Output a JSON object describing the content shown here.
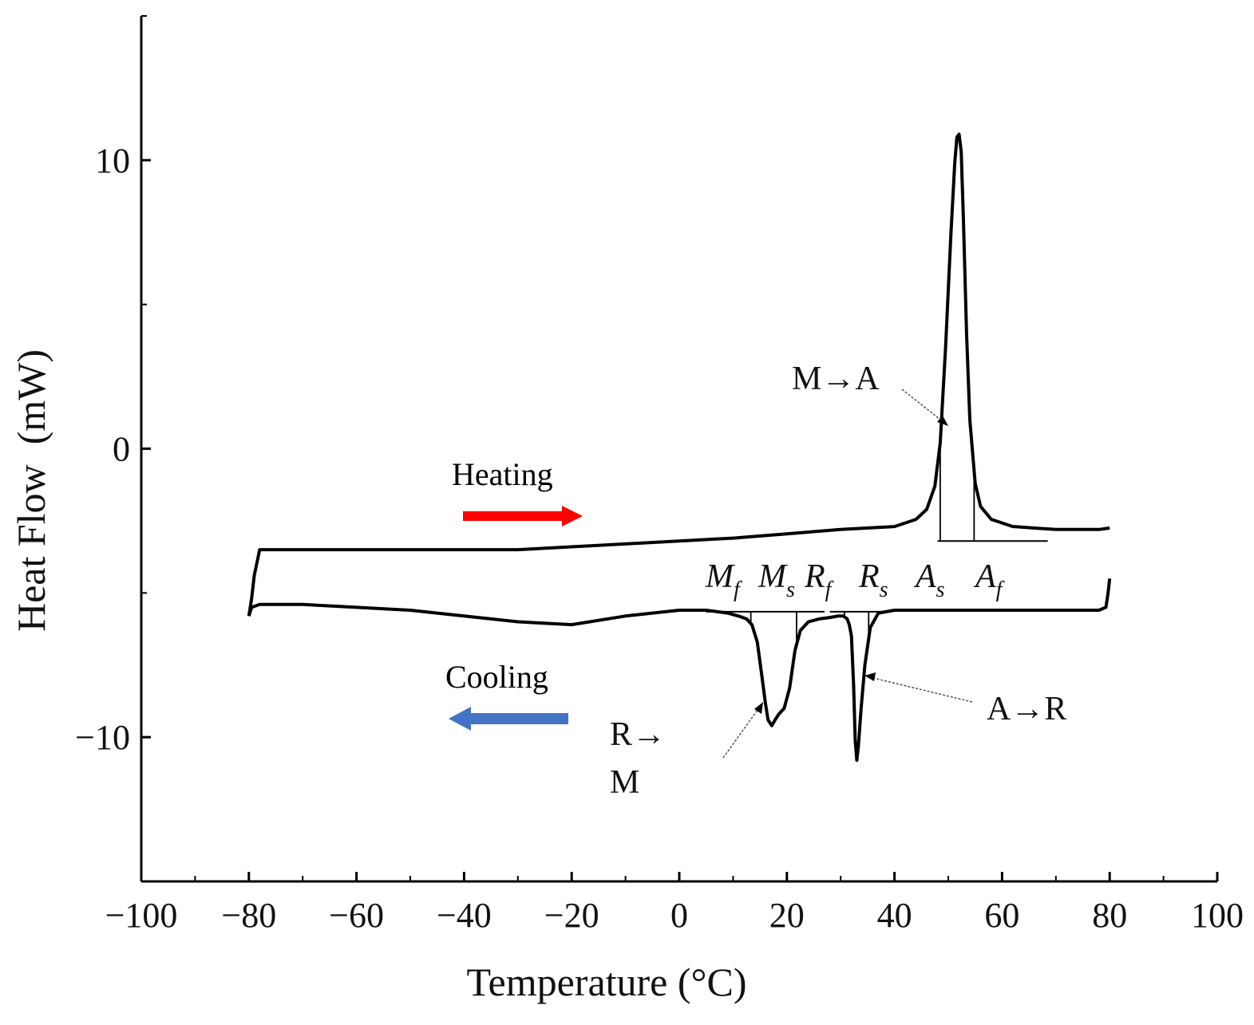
{
  "chart_data": {
    "type": "line",
    "title": "",
    "xlabel": "Temperature (°C)",
    "ylabel": "Heat Flow  (mW)",
    "xlim": [
      -100,
      100
    ],
    "ylim": [
      -15,
      15
    ],
    "x_ticks": [
      -100,
      -80,
      -60,
      -40,
      -20,
      0,
      20,
      40,
      60,
      80,
      100
    ],
    "x_tick_labels": [
      "−100",
      "−80",
      "−60",
      "−40",
      "−20",
      "0",
      "20",
      "40",
      "60",
      "80",
      "100"
    ],
    "y_ticks": [
      10,
      0,
      -10
    ],
    "y_tick_labels": [
      "10",
      "0",
      "−10"
    ],
    "grid": false,
    "series": [
      {
        "role": "heating",
        "x": [
          -80,
          -79.5,
          -79,
          -78,
          -70,
          -60,
          -50,
          -40,
          -30,
          -20,
          -10,
          0,
          10,
          20,
          30,
          40,
          44,
          46,
          47.5,
          48.5,
          49.5,
          50.5,
          51.2,
          51.6,
          52,
          52.4,
          52.8,
          53.4,
          54,
          55,
          56,
          58,
          62,
          66,
          70,
          74,
          78,
          80
        ],
        "y": [
          -5.8,
          -5.2,
          -4.4,
          -3.5,
          -3.5,
          -3.5,
          -3.5,
          -3.5,
          -3.5,
          -3.4,
          -3.3,
          -3.2,
          -3.1,
          -2.95,
          -2.8,
          -2.7,
          -2.45,
          -2.1,
          -1.3,
          0.2,
          3.5,
          7.5,
          9.9,
          10.8,
          10.9,
          10.3,
          8.0,
          4.0,
          1.0,
          -1.2,
          -2.0,
          -2.45,
          -2.7,
          -2.75,
          -2.8,
          -2.8,
          -2.8,
          -2.75
        ]
      },
      {
        "role": "cooling",
        "x": [
          80,
          79.7,
          79.3,
          78,
          70,
          60,
          50,
          45,
          40,
          37,
          35.5,
          34.5,
          33.8,
          33.3,
          33,
          32.7,
          32.4,
          32,
          31.6,
          31.2,
          30.5,
          29.5,
          28,
          26,
          24,
          22.5,
          21.5,
          20.5,
          19.5,
          18.5,
          17.8,
          17.2,
          16.5,
          16,
          15.3,
          14.5,
          13.5,
          12.5,
          11,
          9,
          5,
          0,
          -10,
          -20,
          -30,
          -40,
          -50,
          -60,
          -70,
          -78,
          -79.5,
          -80
        ],
        "y": [
          -4.5,
          -5.0,
          -5.5,
          -5.6,
          -5.6,
          -5.6,
          -5.6,
          -5.6,
          -5.6,
          -5.7,
          -6.2,
          -7.5,
          -9.0,
          -10.3,
          -10.8,
          -10.1,
          -8.2,
          -6.5,
          -6.1,
          -5.9,
          -5.8,
          -5.8,
          -5.85,
          -5.9,
          -6.0,
          -6.3,
          -7.0,
          -8.3,
          -9.0,
          -9.2,
          -9.4,
          -9.6,
          -9.4,
          -8.8,
          -7.8,
          -6.7,
          -6.1,
          -5.9,
          -5.8,
          -5.7,
          -5.6,
          -5.6,
          -5.8,
          -6.1,
          -6.0,
          -5.8,
          -5.6,
          -5.5,
          -5.4,
          -5.4,
          -5.5,
          -5.8
        ]
      }
    ],
    "baselines": [
      {
        "x": [
          48,
          68.5
        ],
        "y": [
          -3.2,
          -3.2
        ]
      },
      {
        "x": [
          5,
          27
        ],
        "y": [
          -5.65,
          -5.65
        ]
      },
      {
        "x": [
          28,
          39
        ],
        "y": [
          -5.65,
          -5.65
        ]
      }
    ],
    "markers": [
      {
        "name": "Mf",
        "x": 13.3,
        "y_top": -5.75
      },
      {
        "name": "Ms",
        "x": 21.8,
        "y_top": -5.75
      },
      {
        "name": "Rf",
        "x": 30.7,
        "y_top": -5.75
      },
      {
        "name": "Rs",
        "x": 35.2,
        "y_top": -5.75
      },
      {
        "name": "As",
        "x": 48.5,
        "y_top": -2.3
      },
      {
        "name": "Af",
        "x": 54.8,
        "y_top": -2.3
      }
    ],
    "annotations": {
      "m_to_a": "M→A",
      "a_to_r": "A→R",
      "r_to_m_line1": "R→",
      "r_to_m_line2": "M",
      "heating": "Heating",
      "cooling": "Cooling",
      "heating_color": "#ff0000",
      "cooling_color": "#4472c4",
      "mf": {
        "base": "M",
        "sub": "f"
      },
      "ms": {
        "base": "M",
        "sub": "s"
      },
      "rf": {
        "base": "R",
        "sub": "f"
      },
      "rs": {
        "base": "R",
        "sub": "s"
      },
      "as": {
        "base": "A",
        "sub": "s"
      },
      "af": {
        "base": "A",
        "sub": "f"
      }
    }
  }
}
